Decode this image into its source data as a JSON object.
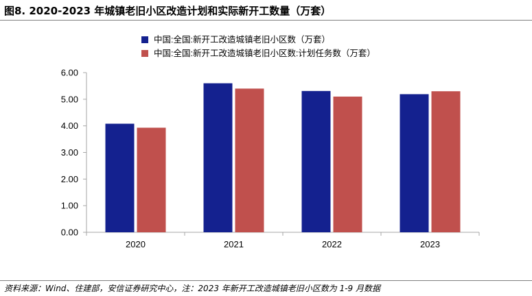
{
  "title": "图8. 2020-2023 年城镇老旧小区改造计划和实际新开工数量（万套）",
  "source": "资料来源：Wind、住建部，安信证券研究中心，注：2023 年新开工改造城镇老旧小区数为 1-9 月数据",
  "chart_data": {
    "type": "bar",
    "categories": [
      "2020",
      "2021",
      "2022",
      "2023"
    ],
    "series": [
      {
        "name": "中国:全国:新开工改造城镇老旧小区数（万套）",
        "color": "#14218f",
        "values": [
          4.08,
          5.6,
          5.31,
          5.19
        ]
      },
      {
        "name": "中国:全国:新开工改造城镇老旧小区数:计划任务数（万套）",
        "color": "#c0504d",
        "values": [
          3.93,
          5.4,
          5.1,
          5.3
        ]
      }
    ],
    "ylim": [
      0,
      6
    ],
    "yticks": [
      "0.00",
      "1.00",
      "2.00",
      "3.00",
      "4.00",
      "5.00",
      "6.00"
    ],
    "xlabel": "",
    "ylabel": "",
    "grid": false,
    "legend_position": "top-left"
  }
}
